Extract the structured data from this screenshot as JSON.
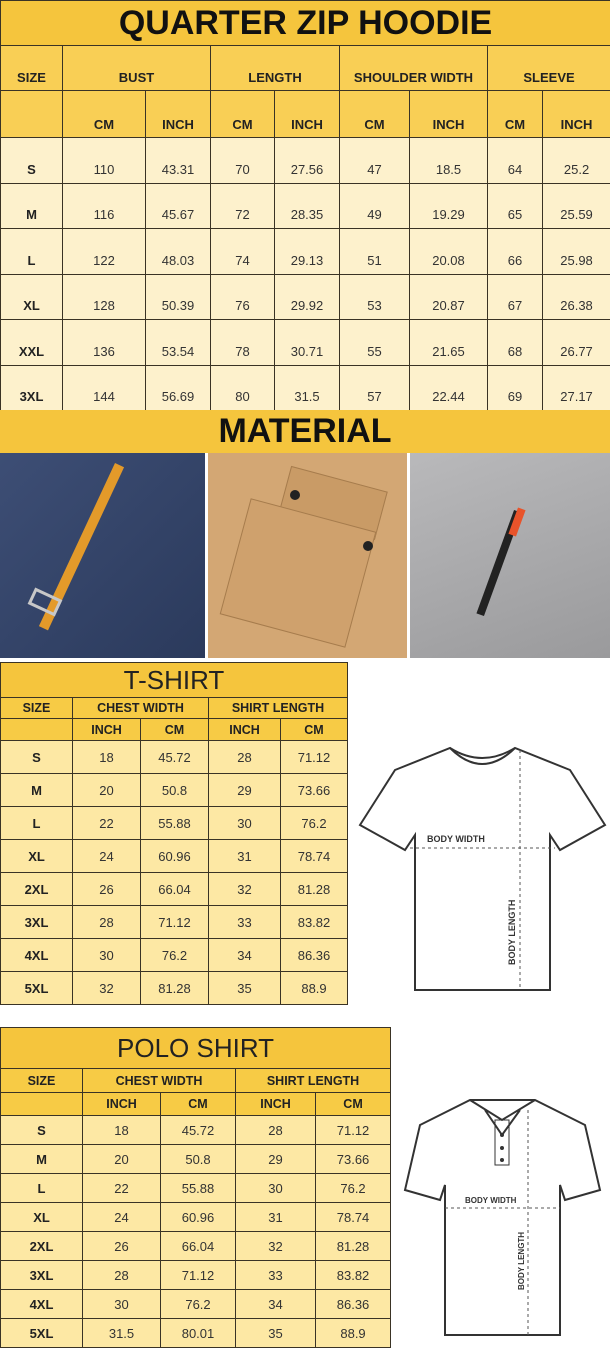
{
  "hoodie": {
    "title": "QUARTER ZIP HOODIE",
    "size_label": "SIZE",
    "groups": [
      "BUST",
      "LENGTH",
      "SHOULDER WIDTH",
      "SLEEVE"
    ],
    "units": [
      "CM",
      "INCH",
      "CM",
      "INCH",
      "CM",
      "INCH",
      "CM",
      "INCH"
    ],
    "rows": [
      [
        "S",
        "110",
        "43.31",
        "70",
        "27.56",
        "47",
        "18.5",
        "64",
        "25.2"
      ],
      [
        "M",
        "116",
        "45.67",
        "72",
        "28.35",
        "49",
        "19.29",
        "65",
        "25.59"
      ],
      [
        "L",
        "122",
        "48.03",
        "74",
        "29.13",
        "51",
        "20.08",
        "66",
        "25.98"
      ],
      [
        "XL",
        "128",
        "50.39",
        "76",
        "29.92",
        "53",
        "20.87",
        "67",
        "26.38"
      ],
      [
        "XXL",
        "136",
        "53.54",
        "78",
        "30.71",
        "55",
        "21.65",
        "68",
        "26.77"
      ],
      [
        "3XL",
        "144",
        "56.69",
        "80",
        "31.5",
        "57",
        "22.44",
        "69",
        "27.17"
      ]
    ]
  },
  "material": {
    "title": "MATERIAL"
  },
  "tshirt": {
    "title": "T-SHIRT",
    "size_label": "SIZE",
    "groups": [
      "CHEST WIDTH",
      "SHIRT LENGTH"
    ],
    "units": [
      "INCH",
      "CM",
      "INCH",
      "CM"
    ],
    "rows": [
      [
        "S",
        "18",
        "45.72",
        "28",
        "71.12"
      ],
      [
        "M",
        "20",
        "50.8",
        "29",
        "73.66"
      ],
      [
        "L",
        "22",
        "55.88",
        "30",
        "76.2"
      ],
      [
        "XL",
        "24",
        "60.96",
        "31",
        "78.74"
      ],
      [
        "2XL",
        "26",
        "66.04",
        "32",
        "81.28"
      ],
      [
        "3XL",
        "28",
        "71.12",
        "33",
        "83.82"
      ],
      [
        "4XL",
        "30",
        "76.2",
        "34",
        "86.36"
      ],
      [
        "5XL",
        "32",
        "81.28",
        "35",
        "88.9"
      ]
    ],
    "diagram": {
      "width_label": "BODY WIDTH",
      "length_label": "BODY LENGTH"
    }
  },
  "polo": {
    "title": "POLO SHIRT",
    "size_label": "SIZE",
    "groups": [
      "CHEST WIDTH",
      "SHIRT LENGTH"
    ],
    "units": [
      "INCH",
      "CM",
      "INCH",
      "CM"
    ],
    "rows": [
      [
        "S",
        "18",
        "45.72",
        "28",
        "71.12"
      ],
      [
        "M",
        "20",
        "50.8",
        "29",
        "73.66"
      ],
      [
        "L",
        "22",
        "55.88",
        "30",
        "76.2"
      ],
      [
        "XL",
        "24",
        "60.96",
        "31",
        "78.74"
      ],
      [
        "2XL",
        "26",
        "66.04",
        "32",
        "81.28"
      ],
      [
        "3XL",
        "28",
        "71.12",
        "33",
        "83.82"
      ],
      [
        "4XL",
        "30",
        "76.2",
        "34",
        "86.36"
      ],
      [
        "5XL",
        "31.5",
        "80.01",
        "35",
        "88.9"
      ]
    ],
    "diagram": {
      "width_label": "BODY WIDTH",
      "length_label": "BODY LENGTH"
    }
  },
  "colors": {
    "title_yellow": "#f5c53d",
    "header_yellow": "#f9cf55",
    "cell_cream": "#fdf1cc",
    "cell_yellow": "#fde8a4"
  }
}
